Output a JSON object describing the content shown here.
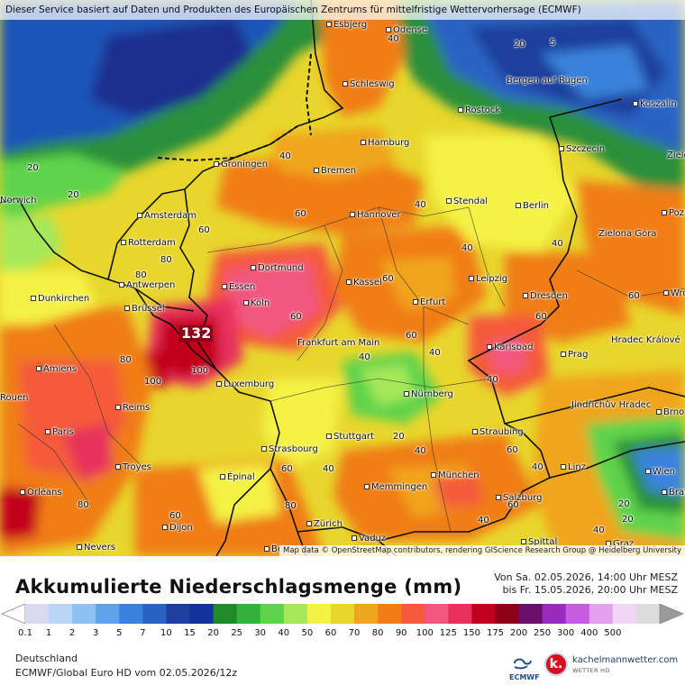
{
  "banner": "Dieser Service basiert auf Daten und Produkten des Europäischen Zentrums für mittelfristige Wettervorhersage (ECMWF)",
  "attribution": "Map data © OpenStreetMap contributors, rendering GIScience Research Group @ Heidelberg University",
  "title": "Akkumulierte Niederschlagsmenge (mm)",
  "range_from": "Von Sa. 02.05.2026, 14:00 Uhr MESZ",
  "range_to": "bis Fr. 15.05.2026, 20:00 Uhr MESZ",
  "region": "Deutschland",
  "model": "ECMWF/Global Euro HD vom  02.05.2026/12z",
  "max_value": "132",
  "logos": {
    "ecmwf": "ECMWF",
    "kachelmann_letter": "k.",
    "kachelmann_name": "kachelmannwetter.com",
    "kachelmann_sub": "WETTER HD"
  },
  "legend": {
    "labels": [
      "0.1",
      "1",
      "2",
      "3",
      "5",
      "7",
      "10",
      "15",
      "20",
      "25",
      "30",
      "40",
      "50",
      "60",
      "70",
      "80",
      "90",
      "100",
      "125",
      "150",
      "175",
      "200",
      "250",
      "300",
      "400",
      "500"
    ],
    "colors": [
      "#d9d9ef",
      "#bcd6f7",
      "#8fc0f2",
      "#5ea3ea",
      "#3a82dc",
      "#2a63c4",
      "#1e3f9b",
      "#13349a",
      "#1f8a2c",
      "#34b33a",
      "#5fd34b",
      "#a6e85a",
      "#f4f244",
      "#e8d62c",
      "#f0a51e",
      "#f07d16",
      "#f55a3a",
      "#f2587f",
      "#e7305b",
      "#c2001f",
      "#8c0018",
      "#6a0f6a",
      "#9a2bbf",
      "#c85ce0",
      "#e4a0ef",
      "#f4d4f6",
      "#dcdcdc"
    ]
  },
  "cities": [
    {
      "name": "Esbjerg"
    },
    {
      "name": "Odense"
    },
    {
      "name": "Schleswig"
    },
    {
      "name": "Bergen auf Rügen"
    },
    {
      "name": "Koszalin"
    },
    {
      "name": "Rostock"
    },
    {
      "name": "Hamburg"
    },
    {
      "name": "Szczecin"
    },
    {
      "name": "Groningen"
    },
    {
      "name": "Bremen"
    },
    {
      "name": "Amsterdam"
    },
    {
      "name": "Hannover"
    },
    {
      "name": "Stendal"
    },
    {
      "name": "Berlin"
    },
    {
      "name": "Rotterdam"
    },
    {
      "name": "Zielona Góra"
    },
    {
      "name": "Dortmund"
    },
    {
      "name": "Antwerpen"
    },
    {
      "name": "Essen"
    },
    {
      "name": "Kassel"
    },
    {
      "name": "Leipzig"
    },
    {
      "name": "Dunkirchen"
    },
    {
      "name": "Köln"
    },
    {
      "name": "Erfurt"
    },
    {
      "name": "Dresden"
    },
    {
      "name": "Brüssel"
    },
    {
      "name": "Frankfurt am Main"
    },
    {
      "name": "Karlsbad"
    },
    {
      "name": "Hradec Králové"
    },
    {
      "name": "Amiens"
    },
    {
      "name": "Prag"
    },
    {
      "name": "Luxemburg"
    },
    {
      "name": "Nürnberg"
    },
    {
      "name": "Reims"
    },
    {
      "name": "Jindřichův Hradec"
    },
    {
      "name": "Paris"
    },
    {
      "name": "Stuttgart"
    },
    {
      "name": "Straubing"
    },
    {
      "name": "Strasbourg"
    },
    {
      "name": "Troyes"
    },
    {
      "name": "München"
    },
    {
      "name": "Linz"
    },
    {
      "name": "Wien"
    },
    {
      "name": "Épinal"
    },
    {
      "name": "Memmingen"
    },
    {
      "name": "Orléans"
    },
    {
      "name": "Salzburg"
    },
    {
      "name": "Dijon"
    },
    {
      "name": "Zürich"
    },
    {
      "name": "Vaduz"
    },
    {
      "name": "Nevers"
    },
    {
      "name": "Bern"
    },
    {
      "name": "Spittal"
    },
    {
      "name": "Graz"
    },
    {
      "name": "Wrocław"
    },
    {
      "name": "Brno"
    },
    {
      "name": "Bratislava"
    },
    {
      "name": "Poznań"
    },
    {
      "name": "Zielona"
    },
    {
      "name": "Norwich"
    },
    {
      "name": "Rouen"
    }
  ],
  "contour_values": [
    "40",
    "20",
    "5",
    "20",
    "40",
    "20",
    "40",
    "60",
    "60",
    "80",
    "80",
    "60",
    "40",
    "40",
    "60",
    "100",
    "100",
    "80",
    "60",
    "40",
    "40",
    "60",
    "40",
    "60",
    "40",
    "20",
    "80",
    "60",
    "40",
    "60",
    "40",
    "60",
    "80",
    "40",
    "20",
    "20",
    "40",
    "60"
  ]
}
